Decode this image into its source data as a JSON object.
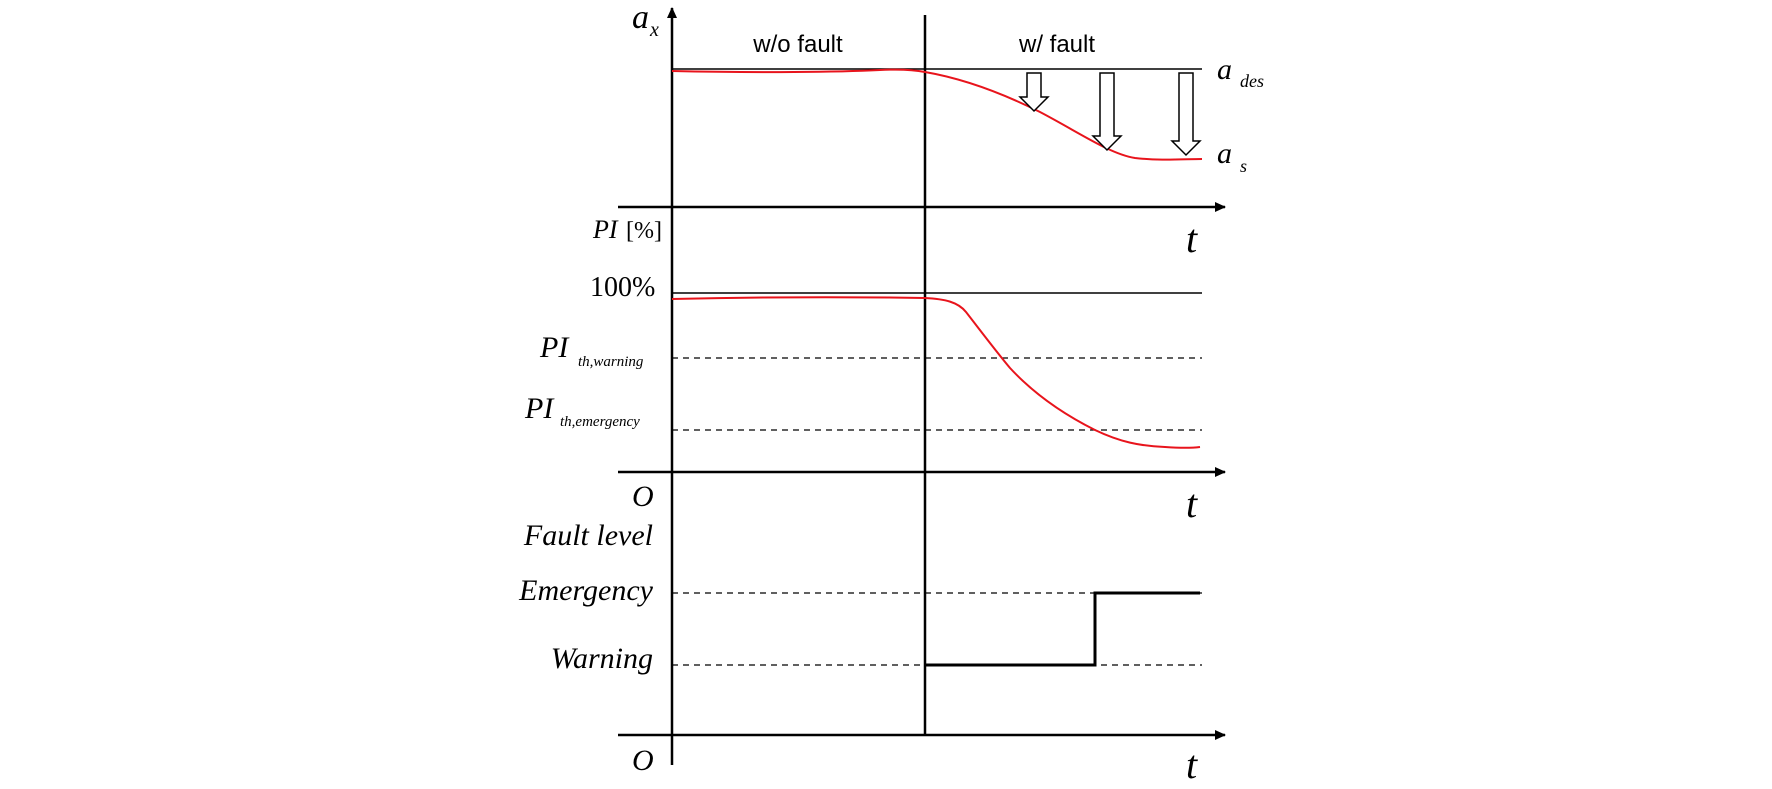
{
  "top_panel": {
    "y_axis": {
      "main": "a",
      "sub": "x"
    },
    "region_left_label": "w/o fault",
    "region_right_label": "w/ fault",
    "desired_label": {
      "main": "a",
      "sub": "des"
    },
    "actual_label": {
      "main": "a",
      "sub": "s"
    },
    "time_label": "t"
  },
  "middle_panel": {
    "y_axis": {
      "main": "PI",
      "unit": "[%]"
    },
    "level_100_label": "100%",
    "warning_threshold": {
      "main": "PI",
      "sub": "th,warning"
    },
    "emergency_threshold": {
      "main": "PI",
      "sub": "th,emergency"
    },
    "origin_label": "O",
    "time_label": "t"
  },
  "bottom_panel": {
    "y_axis": "Fault level",
    "emergency_label": "Emergency",
    "warning_label": "Warning",
    "origin_label": "O",
    "time_label": "t"
  },
  "colors": {
    "signal": "#e8141c",
    "axis": "#000000"
  }
}
